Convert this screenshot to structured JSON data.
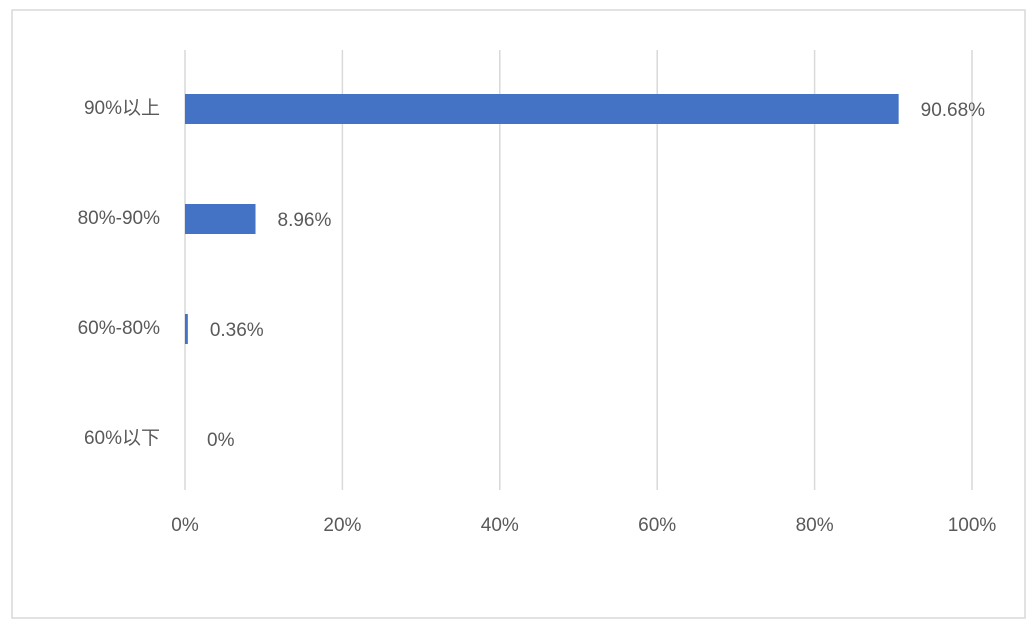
{
  "chart_data": {
    "type": "bar",
    "orientation": "horizontal",
    "categories": [
      "90%以上",
      "80%-90%",
      "60%-80%",
      "60%以下"
    ],
    "values": [
      90.68,
      8.96,
      0.36,
      0
    ],
    "value_labels": [
      "90.68%",
      "8.96%",
      "0.36%",
      "0%"
    ],
    "color": "#4472c4",
    "xlim": [
      0,
      100
    ],
    "xticks": [
      {
        "value": 0,
        "label": "0%"
      },
      {
        "value": 20,
        "label": "20%"
      },
      {
        "value": 40,
        "label": "40%"
      },
      {
        "value": 60,
        "label": "60%"
      },
      {
        "value": 80,
        "label": "80%"
      },
      {
        "value": 100,
        "label": "100%"
      }
    ],
    "grid": true
  }
}
